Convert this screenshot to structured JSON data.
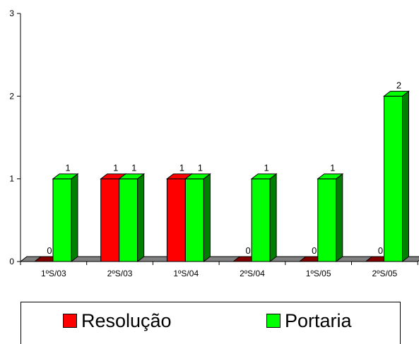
{
  "chart_data": {
    "type": "bar",
    "title": "",
    "xlabel": "",
    "ylabel": "",
    "categories": [
      "1ºS/03",
      "2ºS/03",
      "1ºS/04",
      "2ºS/04",
      "1ºS/05",
      "2ºS/05"
    ],
    "series": [
      {
        "name": "Resolução",
        "values": [
          0,
          1,
          1,
          0,
          0,
          0
        ],
        "color": "#ff0000",
        "side_color": "#800000"
      },
      {
        "name": "Portaria",
        "values": [
          1,
          1,
          1,
          1,
          1,
          2
        ],
        "color": "#00ff00",
        "side_color": "#008000"
      }
    ],
    "ylim": [
      0,
      3
    ],
    "yticks": [
      "0",
      "1",
      "2",
      "3"
    ],
    "style": "3d-bar",
    "grid": false,
    "legend_position": "bottom"
  },
  "legend": {
    "items": [
      {
        "label": "Resolução",
        "color": "#ff0000"
      },
      {
        "label": "Portaria",
        "color": "#00ff00"
      }
    ]
  }
}
